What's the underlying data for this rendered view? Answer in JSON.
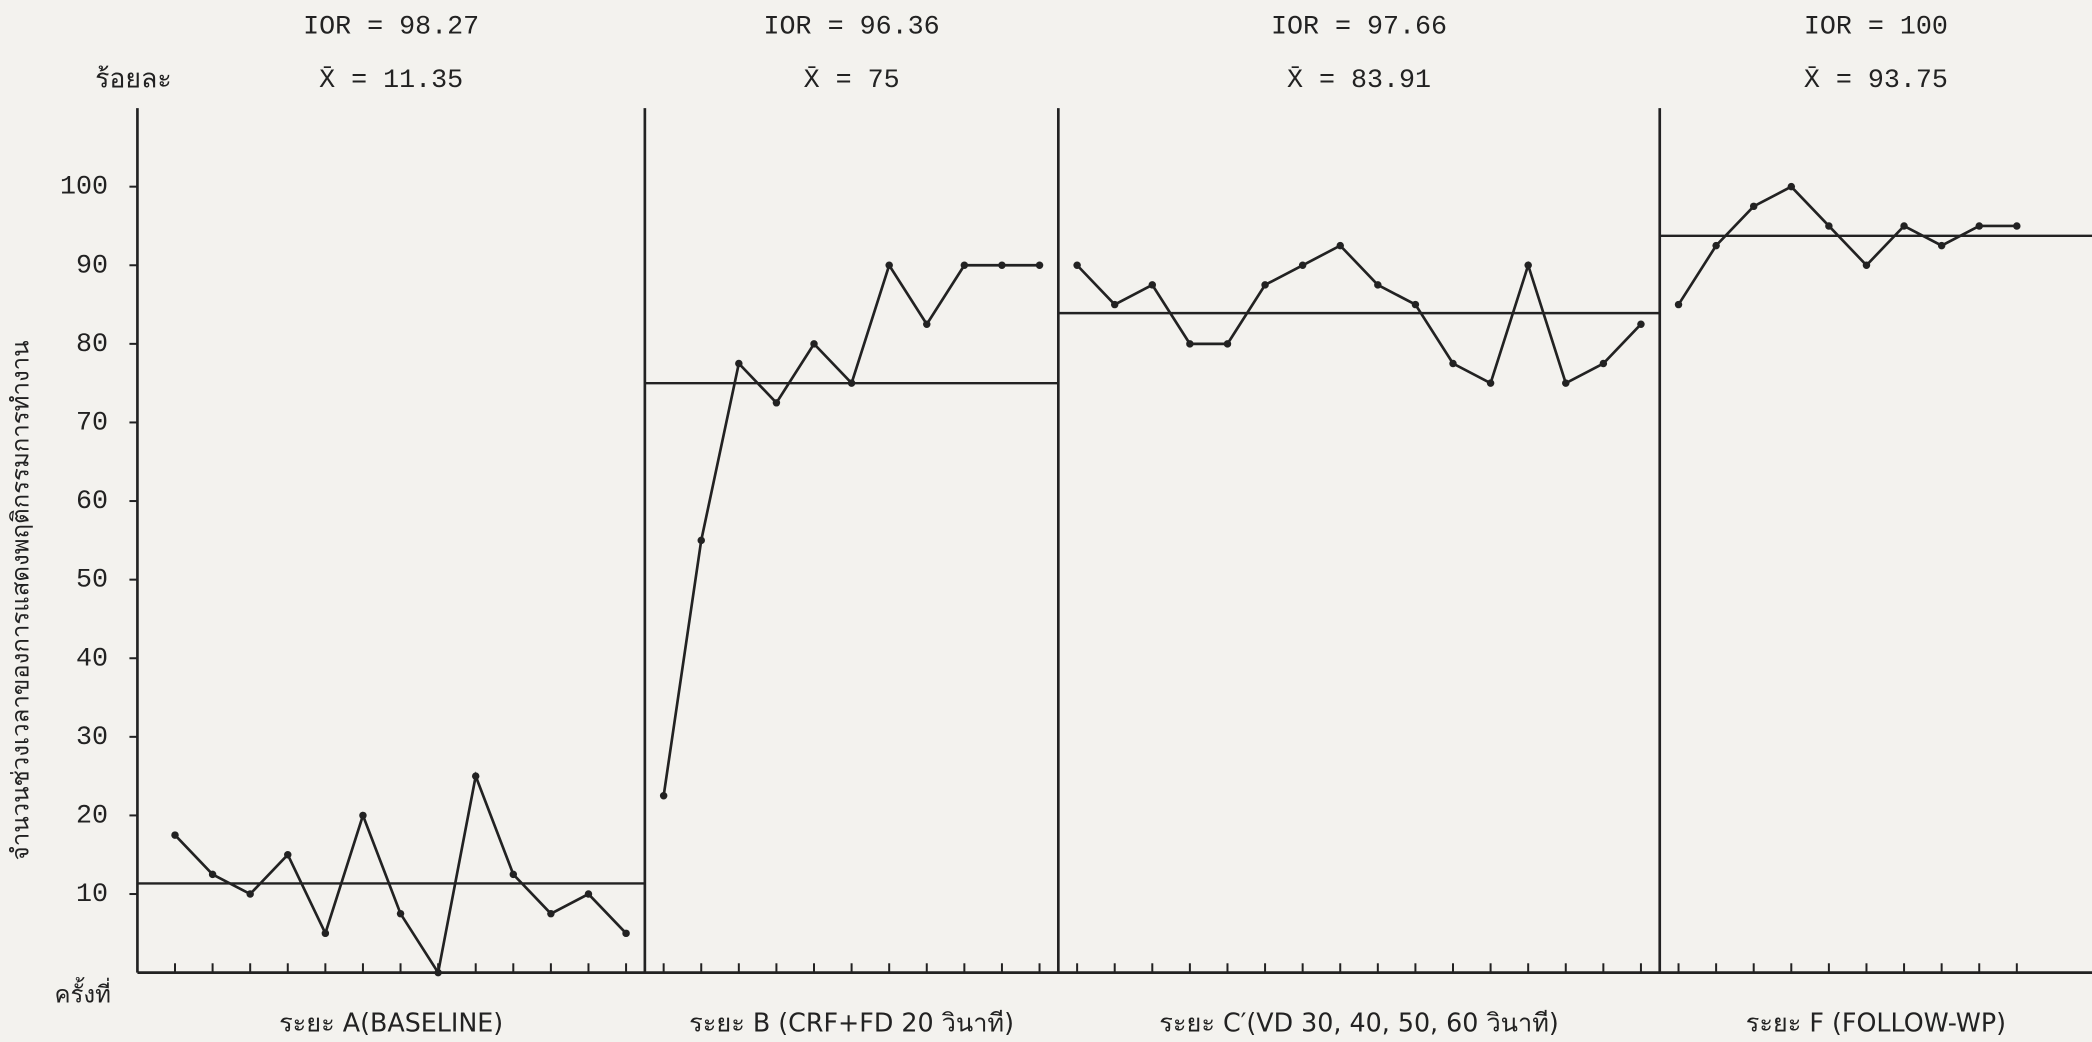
{
  "chart_data": {
    "type": "line",
    "y_axis_label": "จำนวนช่วงเวลาของการแสดงพฤติกรรมการทำงาน",
    "y_unit": "ร้อยละ",
    "x_axis_label": "ครั้งที่",
    "ylim": [
      0,
      110
    ],
    "yticks": [
      10,
      20,
      30,
      40,
      50,
      60,
      70,
      80,
      90,
      100
    ],
    "xlim": [
      0,
      52
    ],
    "color": "#222222",
    "phases": [
      {
        "name": "ระยะ A(BASELINE)",
        "ior": "IOR = 98.27",
        "mean": 11.35,
        "mean_label": "X̄ = 11.35",
        "x": [
          1,
          2,
          3,
          4,
          5,
          6,
          7,
          8,
          9,
          10,
          11,
          12,
          13
        ],
        "values": [
          17.5,
          12.5,
          10,
          15,
          5,
          20,
          7.5,
          0,
          25,
          12.5,
          7.5,
          10,
          5
        ]
      },
      {
        "name": "ระยะ B (CRF+FD 20 วินาที)",
        "ior": "IOR = 96.36",
        "mean": 75,
        "mean_label": "X̄ = 75",
        "x": [
          14,
          15,
          16,
          17,
          18,
          19,
          20,
          21,
          22,
          23,
          24
        ],
        "values": [
          22.5,
          55,
          77.5,
          72.5,
          80,
          75,
          90,
          82.5,
          90,
          90,
          90
        ]
      },
      {
        "name": "ระยะ C′(VD 30, 40, 50, 60 วินาที)",
        "ior": "IOR = 97.66",
        "mean": 83.91,
        "mean_label": "X̄ = 83.91",
        "x": [
          25,
          26,
          27,
          28,
          29,
          30,
          31,
          32,
          33,
          34,
          35,
          36,
          37,
          38,
          39,
          40
        ],
        "values": [
          90,
          85,
          87.5,
          80,
          80,
          87.5,
          90,
          92.5,
          87.5,
          85,
          77.5,
          75,
          90,
          75,
          77.5,
          82.5
        ]
      },
      {
        "name": "ระยะ F (FOLLOW-WP)",
        "ior": "IOR = 100",
        "mean": 93.75,
        "mean_label": "X̄ = 93.75",
        "x": [
          41,
          42,
          43,
          44,
          45,
          46,
          47,
          48,
          49,
          50
        ],
        "values": [
          85,
          92.5,
          97.5,
          100,
          95,
          90,
          95,
          92.5,
          95,
          95
        ]
      }
    ]
  }
}
